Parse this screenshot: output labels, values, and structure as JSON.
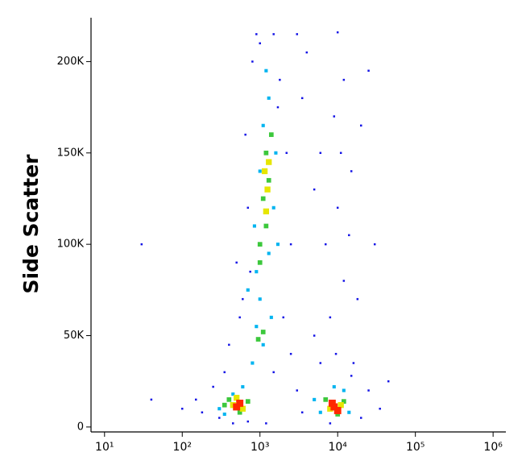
{
  "chart_data": {
    "type": "scatter",
    "y_label": "Side Scatter",
    "x_scale": "log",
    "xlim": [
      6.7,
      1460000
    ],
    "ylim": [
      -2700,
      224000
    ],
    "xticks": [
      {
        "value": 10,
        "label": "10¹"
      },
      {
        "value": 100,
        "label": "10²"
      },
      {
        "value": 1000,
        "label": "10³"
      },
      {
        "value": 10000,
        "label": "10⁴"
      },
      {
        "value": 100000,
        "label": "10⁵"
      },
      {
        "value": 1000000,
        "label": "10⁶"
      }
    ],
    "yticks": [
      0,
      {
        "value": 50000,
        "label": "50K"
      },
      {
        "value": 100000,
        "label": "100K"
      },
      {
        "value": 150000,
        "label": "150K"
      },
      {
        "value": 200000,
        "label": "200K"
      }
    ],
    "series": [
      {
        "color": "#1414e6",
        "x": [
          150,
          180,
          250,
          300,
          700,
          350,
          400,
          600,
          500,
          700,
          650,
          800,
          1800,
          2200,
          2500,
          2000,
          1500,
          3000,
          3500,
          20000,
          25000,
          15000,
          6000,
          8000,
          12000,
          7000,
          10000,
          15000,
          6000,
          9000,
          20000,
          30000,
          5000,
          12000,
          4000,
          30,
          40,
          100,
          900,
          1500,
          3000,
          10000,
          25000,
          5000,
          450,
          1200,
          8000,
          35000,
          2500,
          550,
          750,
          1700,
          1000,
          3500,
          11000,
          14000,
          18000,
          9500,
          45000,
          16000
        ],
        "values": [
          15000,
          8000,
          22000,
          5000,
          3000,
          30000,
          45000,
          70000,
          90000,
          120000,
          160000,
          200000,
          190000,
          150000,
          100000,
          60000,
          30000,
          20000,
          8000,
          5000,
          20000,
          28000,
          35000,
          60000,
          80000,
          100000,
          120000,
          140000,
          150000,
          170000,
          165000,
          100000,
          130000,
          190000,
          205000,
          100000,
          15000,
          10000,
          215000,
          215000,
          215000,
          216000,
          195000,
          50000,
          2000,
          2000,
          2000,
          10000,
          40000,
          60000,
          85000,
          175000,
          210000,
          180000,
          150000,
          105000,
          70000,
          40000,
          25000,
          35000
        ]
      },
      {
        "color": "#00b4f0",
        "x": [
          450,
          300,
          350,
          600,
          800,
          900,
          1100,
          1400,
          1000,
          900,
          1300,
          850,
          1500,
          1000,
          1600,
          1100,
          1300,
          1200,
          6000,
          12000,
          9000,
          14000,
          5000,
          700,
          1700
        ],
        "values": [
          18000,
          10000,
          7000,
          22000,
          35000,
          55000,
          45000,
          60000,
          70000,
          85000,
          95000,
          110000,
          120000,
          140000,
          150000,
          165000,
          180000,
          195000,
          8000,
          20000,
          22000,
          8000,
          15000,
          75000,
          100000
        ]
      },
      {
        "color": "#3cc83c",
        "x": [
          400,
          550,
          700,
          1100,
          950,
          1000,
          1200,
          1100,
          1300,
          1200,
          1400,
          7000,
          10000,
          12000,
          350,
          1000
        ],
        "values": [
          15000,
          8000,
          14000,
          52000,
          48000,
          100000,
          110000,
          125000,
          135000,
          150000,
          160000,
          15000,
          7000,
          14000,
          12000,
          90000
        ]
      },
      {
        "color": "#e6e600",
        "x": [
          450,
          600,
          500,
          1250,
          1150,
          1200,
          8000,
          11000,
          1300
        ],
        "values": [
          12000,
          10000,
          16000,
          130000,
          140000,
          118000,
          10000,
          12000,
          145000
        ]
      },
      {
        "color": "#ff2800",
        "x": [
          500,
          550,
          9000,
          8500,
          10000
        ],
        "values": [
          11000,
          13000,
          11000,
          13000,
          9000
        ]
      }
    ]
  }
}
